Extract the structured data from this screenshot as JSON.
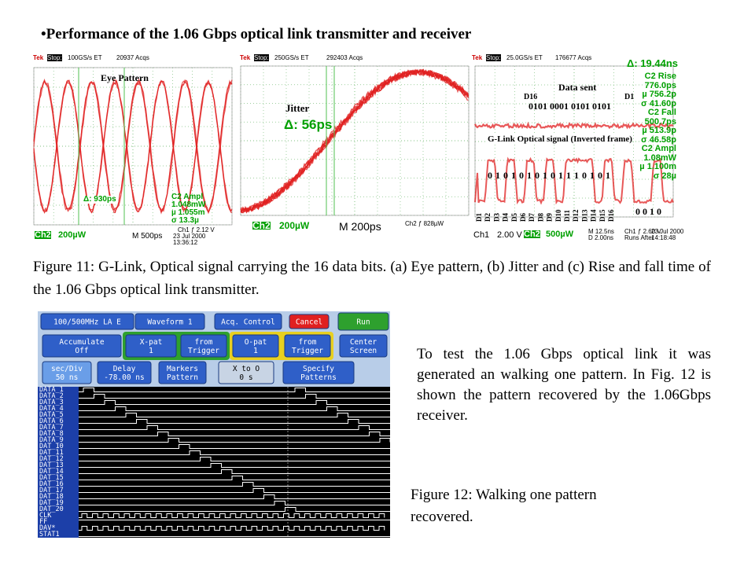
{
  "title": "•Performance of the 1.06 Gbps optical link transmitter and receiver",
  "scopes": [
    {
      "brand": "Tek",
      "state": "Stop:",
      "rate": "100GS/s ET",
      "acqs": "20937 Acqs",
      "label": "Eye Pattern",
      "delta": "Δ: 930ps",
      "meas": [
        "C2 Ampl",
        "1.048mW",
        "µ 1.055m",
        "σ 13.3µ"
      ],
      "ch": "Ch2",
      "scale": "200µW",
      "time": "M 500ps",
      "trig": "Ch1 ƒ 2.12 V",
      "date": "23 Jul 2000",
      "clock": "13:36:12"
    },
    {
      "brand": "Tek",
      "state": "Stop:",
      "rate": "250GS/s ET",
      "acqs": "292403 Acqs",
      "label": "Jitter",
      "delta": "Δ: 56ps",
      "ch": "Ch2",
      "scale": "200µW",
      "time": "M 200ps",
      "trig": "Ch2 ƒ 828µW"
    },
    {
      "brand": "Tek",
      "state": "Stop:",
      "rate": "25.0GS/s ET",
      "acqs": "176677 Acqs",
      "delta": "Δ: 19.44ns",
      "meas": [
        "C2 Rise",
        "776.0ps",
        "µ 756.2p",
        "σ 41.60p",
        "C2 Fall",
        "500.7ps",
        "µ 513.9p",
        "σ 46.58p",
        "C2 Ampl",
        "1.08mW",
        "µ 1.100m",
        "σ 28µ"
      ],
      "data_sent": "Data sent",
      "d_first": "D16",
      "d_last": "D1",
      "pattern": "0101 0001 0101 0101",
      "glink": "G-Link Optical signal (Inverted frame)",
      "bits": "0 1 0 1 0 1 0 1 0 1 1 1 0 1 0 1",
      "bits_tail": "0 0 1 0",
      "d_labels": [
        "D1",
        "D2",
        "D3",
        "D4",
        "D5",
        "D6",
        "D7",
        "D8",
        "D9",
        "D10",
        "D11",
        "D12",
        "D13",
        "D14",
        "D15",
        "D16"
      ],
      "ch1": "Ch1",
      "ch1_scale": "2.00 V",
      "ch": "Ch2",
      "scale": "500µW",
      "time": "M 12.5ns",
      "delay": "D 2.00ns",
      "trig": "Ch1 ƒ 2.60 V",
      "runs": "Runs After",
      "date": "23 Jul 2000",
      "clock": "14:18:48"
    }
  ],
  "figure11_caption": "Figure 11: G-Link, Optical signal carrying the 16 data bits. (a) Eye pattern, (b) Jitter and (c) Rise and fall time of the 1.06 Gbps optical link transmitter.",
  "logic_analyzer": {
    "buttons": [
      [
        "100/500MHz LA E"
      ],
      [
        "Waveform 1"
      ],
      [
        "Acq. Control"
      ],
      [
        "Cancel"
      ],
      [
        "Run"
      ],
      [
        "Accumulate",
        "Off"
      ],
      [
        "X-pat",
        "1"
      ],
      [
        "from",
        "Trigger"
      ],
      [
        "O-pat",
        "1"
      ],
      [
        "from",
        "Trigger"
      ],
      [
        "Center",
        "Screen"
      ],
      [
        "sec/Div",
        "50 ns"
      ],
      [
        "Delay",
        "-78.00 ns"
      ],
      [
        "Markers",
        "Pattern"
      ],
      [
        "X to O",
        "0 s"
      ],
      [
        "Specify",
        "Patterns"
      ]
    ],
    "signals": [
      "DATA_1",
      "DATA_2",
      "DATA_3",
      "DATA_4",
      "DATA_5",
      "DATA_6",
      "DATA_7",
      "DATA_8",
      "DATA_9",
      "DAT_10",
      "DAT_11",
      "DAT_12",
      "DAT_13",
      "DAT_14",
      "DAT_15",
      "DAT_16",
      "DAT_17",
      "DAT_18",
      "DAT_19",
      "DAT_20",
      "CLK",
      "FF",
      "DAV*",
      "STAT1"
    ]
  },
  "paragraph": "To test the 1.06 Gbps optical link it was generated an walking one pattern. In Fig. 12 is shown the pattern recovered by the 1.06Gbps receiver.",
  "figure12_caption": "Figure 12: Walking one pattern recovered."
}
